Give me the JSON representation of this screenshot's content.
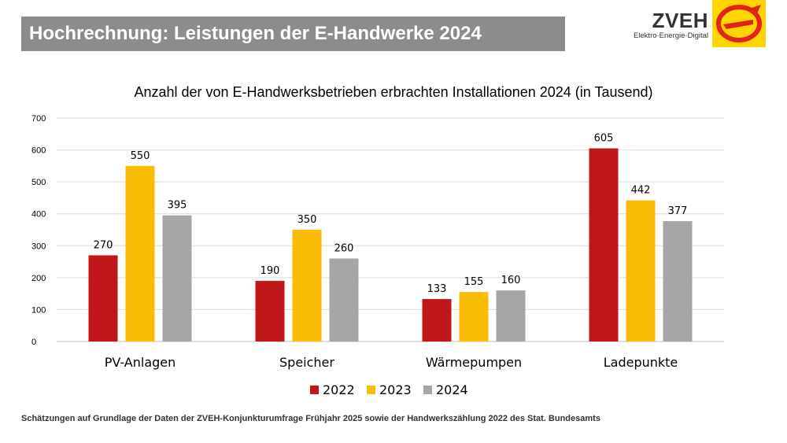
{
  "header": {
    "title": "Hochrechnung: Leistungen der E-Handwerke 2024"
  },
  "logo": {
    "name": "ZVEH",
    "tagline": "Elektro·Energie·Digital",
    "icon": "zveh-e-logo-icon",
    "background": "#ffd400",
    "mark_color": "#e2231a"
  },
  "footnote": "Schätzungen auf Grundlage der Daten der ZVEH-Konjunkturumfrage Frühjahr 2025 sowie der Handwerkszählung 2022 des Stat. Bundesamts",
  "chart_data": {
    "type": "bar",
    "title": "Anzahl der von E-Handwerksbetrieben erbrachten Installationen 2024 (in Tausend)",
    "xlabel": "",
    "ylabel": "",
    "ylim": [
      0,
      700
    ],
    "yticks": [
      "0",
      "100",
      "200",
      "300",
      "400",
      "500",
      "600",
      "700"
    ],
    "categories": [
      "PV-Anlagen",
      "Speicher",
      "Wärmepumpen",
      "Ladepunkte"
    ],
    "series": [
      {
        "name": "2022",
        "color": "#c0171b",
        "values": [
          270,
          190,
          133,
          605
        ]
      },
      {
        "name": "2023",
        "color": "#fbbc05",
        "values": [
          550,
          350,
          155,
          442
        ]
      },
      {
        "name": "2024",
        "color": "#a6a6a6",
        "values": [
          395,
          260,
          160,
          377
        ]
      }
    ],
    "grid": true,
    "legend": "bottom"
  }
}
